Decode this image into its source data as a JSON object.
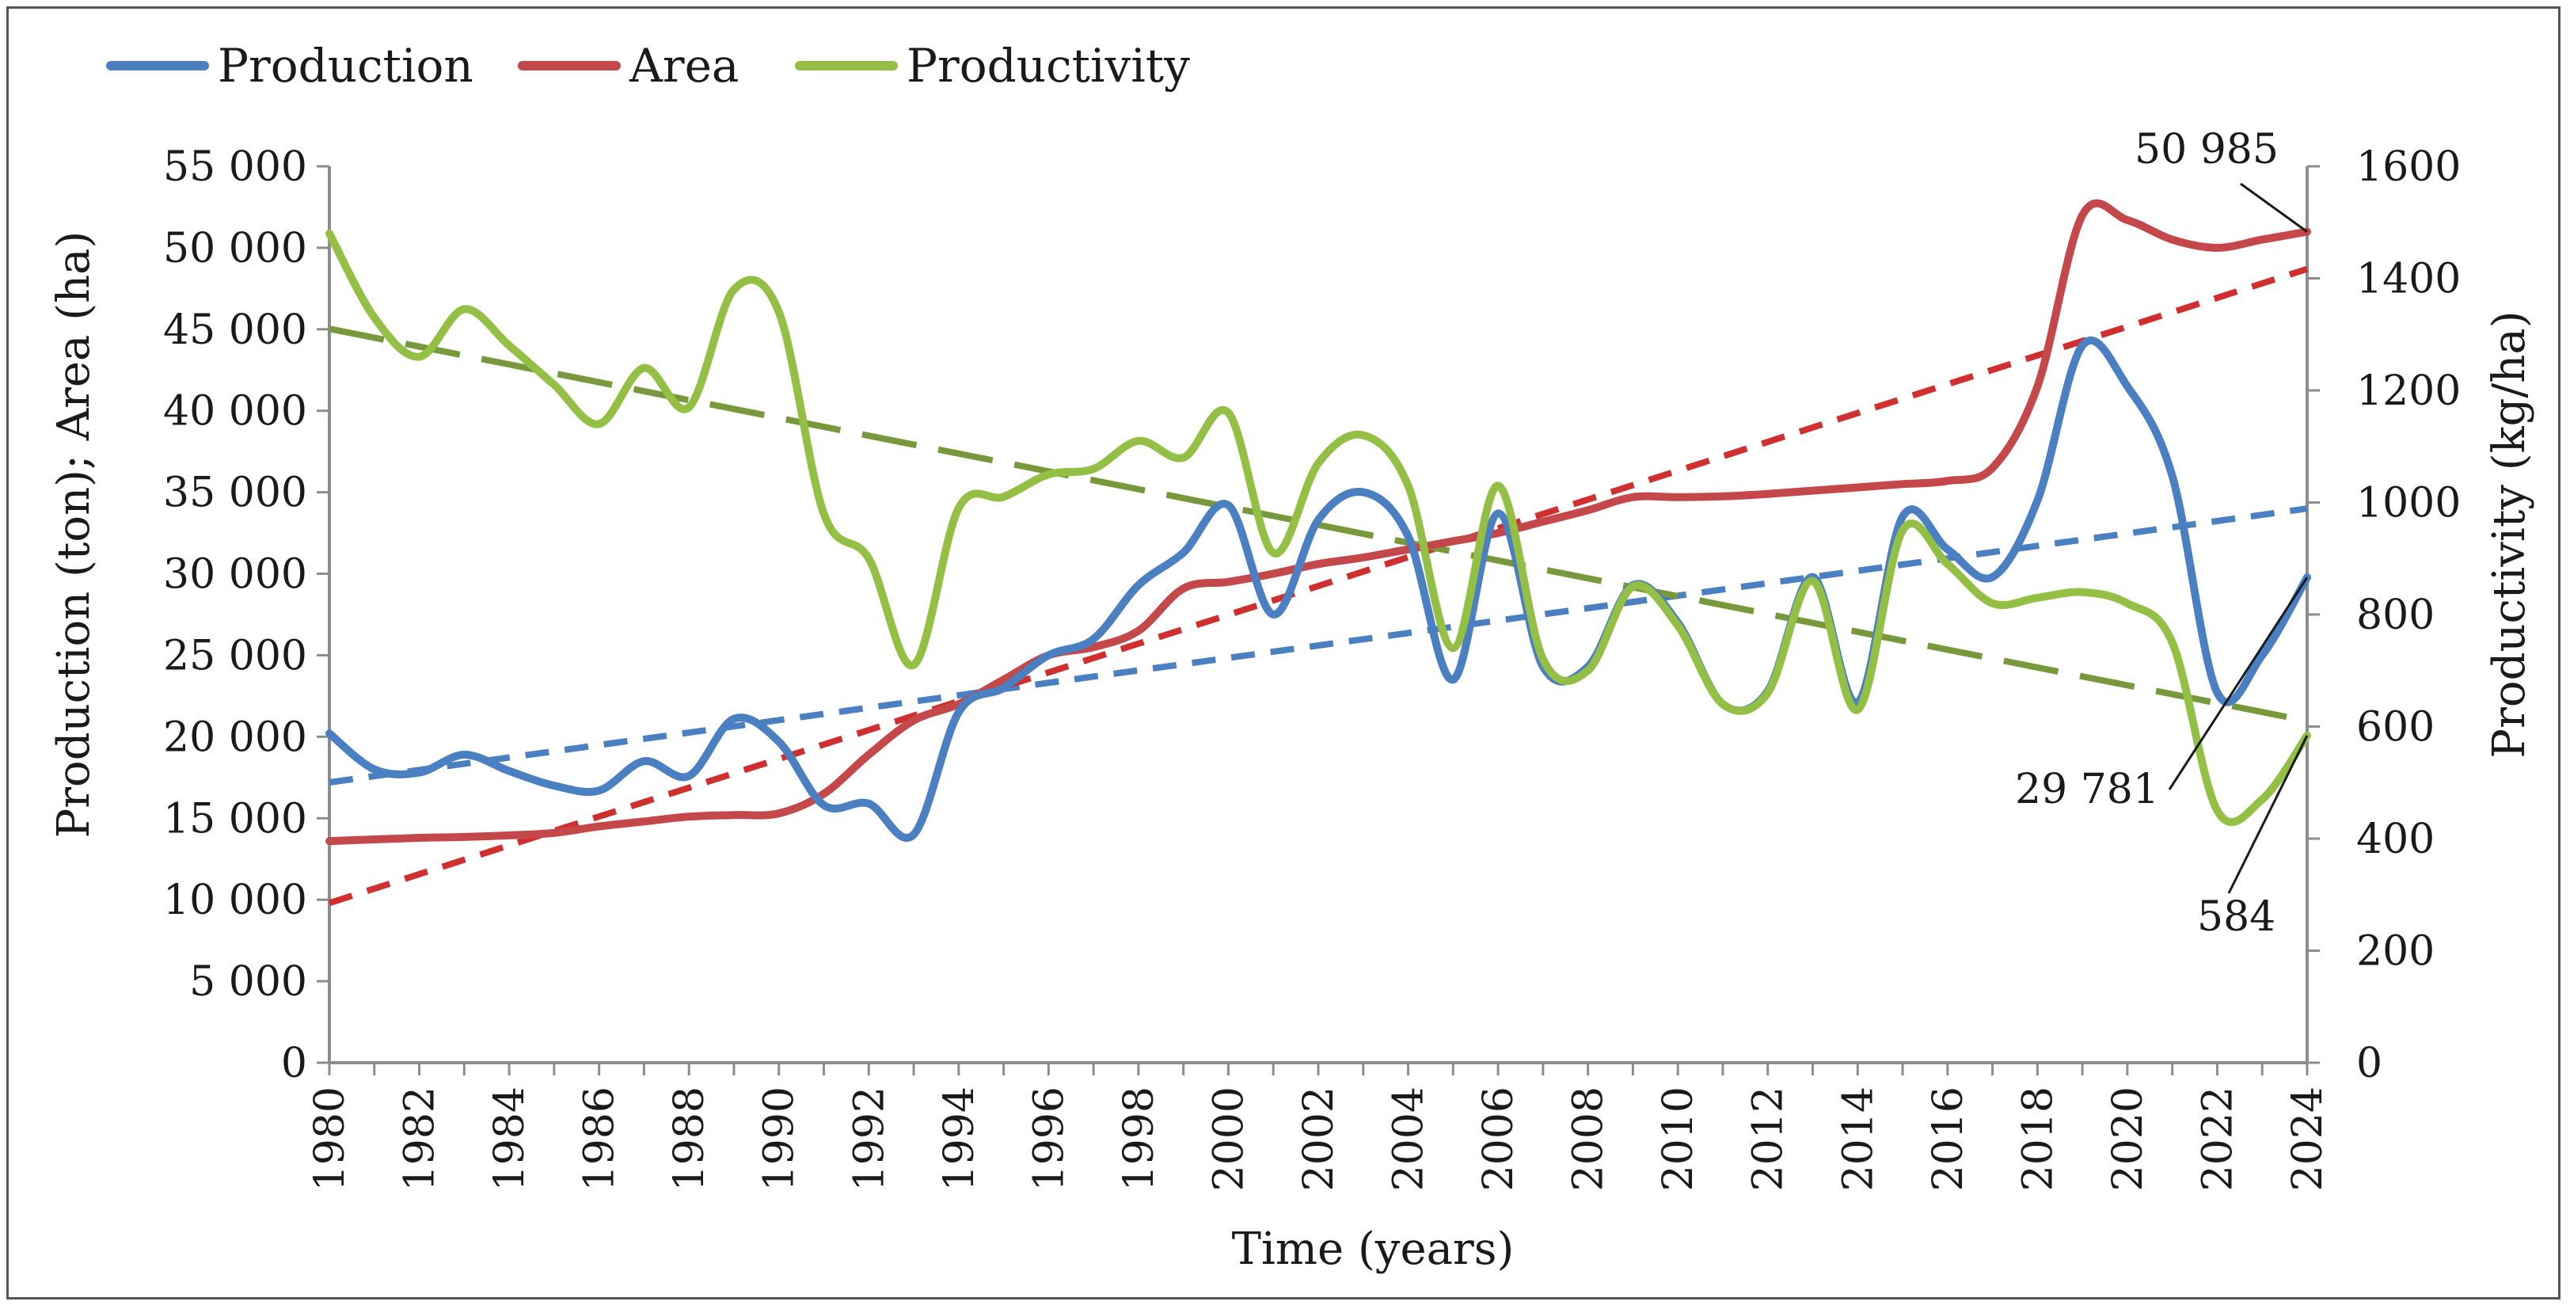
{
  "chart_data": {
    "type": "line",
    "title": "",
    "xlabel": "Time (years)",
    "ylabel": "Production (ton); Area (ha)",
    "y2label": "Productivity (kg/ha)",
    "xlim": [
      1980,
      2024
    ],
    "ylim": [
      0,
      55000
    ],
    "y2lim": [
      0,
      1600
    ],
    "x_ticks": [
      1980,
      1982,
      1984,
      1986,
      1988,
      1990,
      1992,
      1994,
      1996,
      1998,
      2000,
      2002,
      2004,
      2006,
      2008,
      2010,
      2012,
      2014,
      2016,
      2018,
      2020,
      2022,
      2024
    ],
    "x_tick_labels": [
      "1980",
      "1982",
      "1984",
      "1986",
      "1988",
      "1990",
      "1992",
      "1994",
      "1996",
      "1998",
      "2000",
      "2002",
      "2004",
      "2006",
      "2008",
      "2010",
      "2012",
      "2014",
      "2016",
      "2018",
      "2020",
      "2022",
      "2024"
    ],
    "y_ticks": [
      0,
      5000,
      10000,
      15000,
      20000,
      25000,
      30000,
      35000,
      40000,
      45000,
      50000,
      55000
    ],
    "y_tick_labels": [
      "0",
      "5 000",
      "10 000",
      "15 000",
      "20 000",
      "25 000",
      "30 000",
      "35 000",
      "40 000",
      "45 000",
      "50 000",
      "55 000"
    ],
    "y2_ticks": [
      0,
      200,
      400,
      600,
      800,
      1000,
      1200,
      1400,
      1600
    ],
    "y2_tick_labels": [
      "0",
      "200",
      "400",
      "600",
      "800",
      "1000",
      "1200",
      "1400",
      "1600"
    ],
    "legend_position": "top-left",
    "x": [
      1980,
      1981,
      1982,
      1983,
      1984,
      1985,
      1986,
      1987,
      1988,
      1989,
      1990,
      1991,
      1992,
      1993,
      1994,
      1995,
      1996,
      1997,
      1998,
      1999,
      2000,
      2001,
      2002,
      2003,
      2004,
      2005,
      2006,
      2007,
      2008,
      2009,
      2010,
      2011,
      2012,
      2013,
      2014,
      2015,
      2016,
      2017,
      2018,
      2019,
      2020,
      2021,
      2022,
      2023,
      2024
    ],
    "series": [
      {
        "name": "Production",
        "axis": "left",
        "color": "#4a7fc1",
        "values": [
          20200,
          18000,
          17800,
          18900,
          17900,
          17000,
          16700,
          18500,
          17600,
          21100,
          19700,
          15800,
          15900,
          14000,
          21500,
          23000,
          25000,
          26000,
          29300,
          31300,
          34200,
          27500,
          33300,
          35000,
          32300,
          23500,
          33700,
          24300,
          24300,
          29300,
          27000,
          22000,
          22800,
          29800,
          22100,
          33500,
          31500,
          29800,
          34500,
          44000,
          41500,
          36000,
          22700,
          25000,
          29781
        ],
        "trend": {
          "start": 17200,
          "end": 34000,
          "color": "#4a7fc1",
          "dash": "short"
        }
      },
      {
        "name": "Area",
        "axis": "left",
        "color": "#c4474a",
        "values": [
          13600,
          13700,
          13800,
          13850,
          13950,
          14100,
          14500,
          14800,
          15100,
          15200,
          15300,
          16500,
          18900,
          21000,
          22000,
          23500,
          25000,
          25500,
          26500,
          29100,
          29500,
          30000,
          30600,
          31000,
          31500,
          32000,
          32500,
          33200,
          33900,
          34700,
          34700,
          34750,
          34900,
          35100,
          35300,
          35500,
          35700,
          36500,
          41500,
          52000,
          51700,
          50500,
          50000,
          50500,
          50985
        ],
        "trend": {
          "start": 9800,
          "end": 48700,
          "color": "#d02f2f",
          "dash": "short"
        }
      },
      {
        "name": "Productivity",
        "axis": "right",
        "color": "#93bf44",
        "values": [
          1480,
          1330,
          1260,
          1345,
          1280,
          1210,
          1140,
          1240,
          1170,
          1380,
          1340,
          980,
          900,
          710,
          990,
          1010,
          1050,
          1060,
          1110,
          1080,
          1160,
          910,
          1070,
          1120,
          1030,
          740,
          1030,
          720,
          700,
          850,
          780,
          640,
          660,
          860,
          630,
          950,
          890,
          820,
          830,
          840,
          820,
          750,
          450,
          470,
          584
        ],
        "trend": {
          "start": 1310,
          "end": 610,
          "color": "#77993b",
          "dash": "long"
        }
      }
    ],
    "annotations": [
      {
        "label": "50 985",
        "series": "Area",
        "year": 2024,
        "value": 50985
      },
      {
        "label": "29 781",
        "series": "Production",
        "year": 2024,
        "value": 29781
      },
      {
        "label": "584",
        "series": "Productivity",
        "year": 2024,
        "value": 584
      }
    ]
  }
}
